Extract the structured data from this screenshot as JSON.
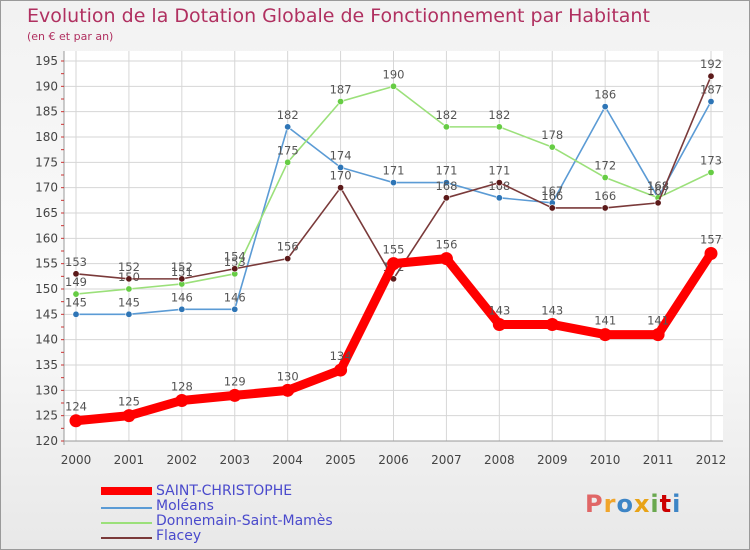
{
  "title": "Evolution de la Dotation Globale de Fonctionnement par Habitant",
  "subtitle": "(en € et par an)",
  "logo": {
    "text": "Proxiti",
    "colors": [
      "#e06666",
      "#f1a52b",
      "#3d85c6",
      "#e8a317",
      "#6aa84f",
      "#cc0000",
      "#3d85c6"
    ]
  },
  "chart_data": {
    "type": "line",
    "title": "Evolution de la Dotation Globale de Fonctionnement par Habitant",
    "subtitle": "(en € et par an)",
    "x": [
      "2000",
      "2001",
      "2002",
      "2003",
      "2004",
      "2005",
      "2006",
      "2007",
      "2008",
      "2009",
      "2010",
      "2011",
      "2012"
    ],
    "yticks": [
      120,
      125,
      130,
      135,
      140,
      145,
      150,
      155,
      160,
      165,
      170,
      175,
      180,
      185,
      190,
      195
    ],
    "ylim": [
      120,
      195
    ],
    "grid": true,
    "legend": "bottom-left",
    "series": [
      {
        "name": "Moléans",
        "color": "#5b9bd5",
        "marker": "#2e75b6",
        "values": [
          145,
          145,
          146,
          146,
          182,
          174,
          171,
          171,
          168,
          167,
          186,
          168,
          187
        ]
      },
      {
        "name": "Donnemain-Saint-Mamès",
        "color": "#9be07a",
        "marker": "#66cc44",
        "values": [
          149,
          150,
          151,
          153,
          175,
          187,
          190,
          182,
          182,
          178,
          172,
          168,
          173
        ]
      },
      {
        "name": "Flacey",
        "color": "#7a3a3a",
        "marker": "#5c1a1a",
        "values": [
          153,
          152,
          152,
          154,
          156,
          170,
          152,
          168,
          171,
          166,
          166,
          167,
          192
        ]
      },
      {
        "name": "SAINT-CHRISTOPHE",
        "color": "#ff0000",
        "marker": "#ff0000",
        "values": [
          124,
          125,
          128,
          129,
          130,
          134,
          155,
          156,
          143,
          143,
          141,
          141,
          157
        ]
      }
    ]
  }
}
